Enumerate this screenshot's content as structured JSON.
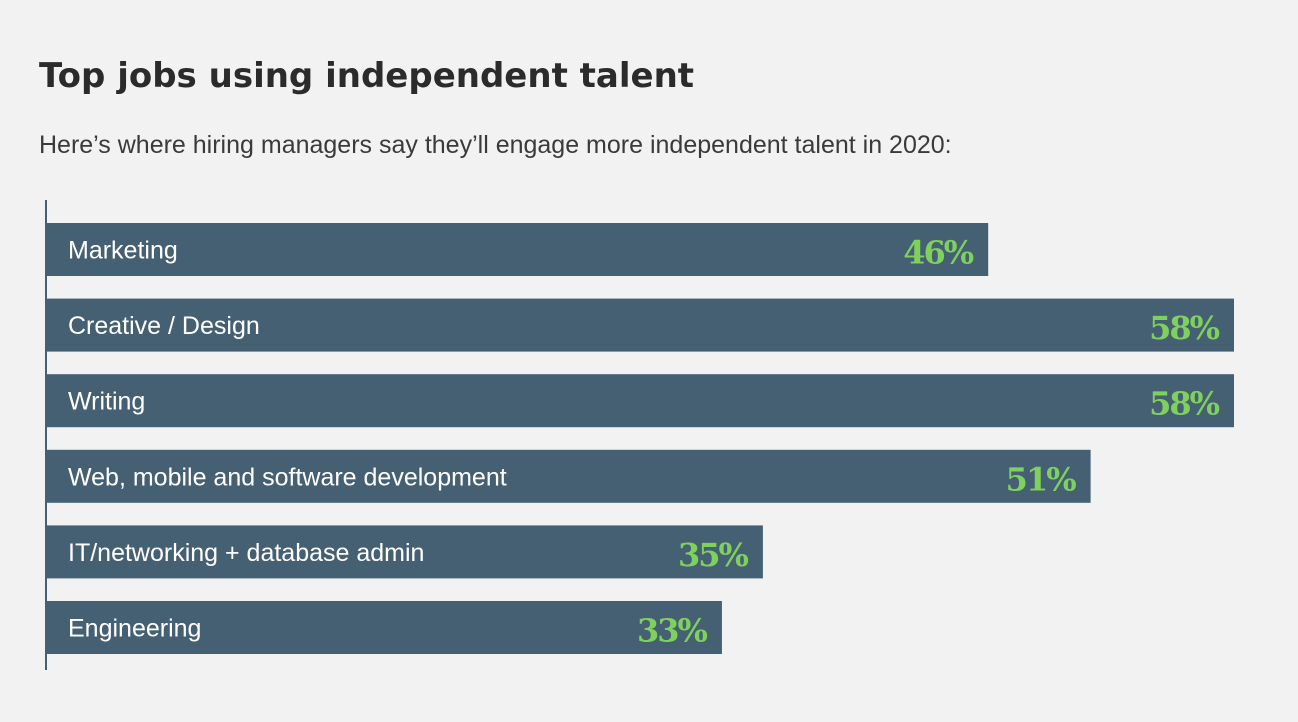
{
  "header": {
    "title": "Top jobs using independent talent",
    "subtitle": "Here’s where hiring managers say they’ll engage more independent talent in 2020:"
  },
  "chart_data": {
    "type": "bar",
    "orientation": "horizontal",
    "categories": [
      "Marketing",
      "Creative / Design",
      "Writing",
      "Web, mobile and software development",
      "IT/networking + database admin",
      "Engineering"
    ],
    "values": [
      46,
      58,
      58,
      51,
      35,
      33
    ],
    "value_labels": [
      "46%",
      "58%",
      "58%",
      "51%",
      "35%",
      "33%"
    ],
    "unit": "%",
    "xlim": [
      0,
      58
    ],
    "grid": false,
    "legend": "none",
    "colors": {
      "bar": "#466073",
      "value_text": "#7fd15e",
      "label_text": "#ffffff",
      "background": "#f2f2f2"
    }
  }
}
